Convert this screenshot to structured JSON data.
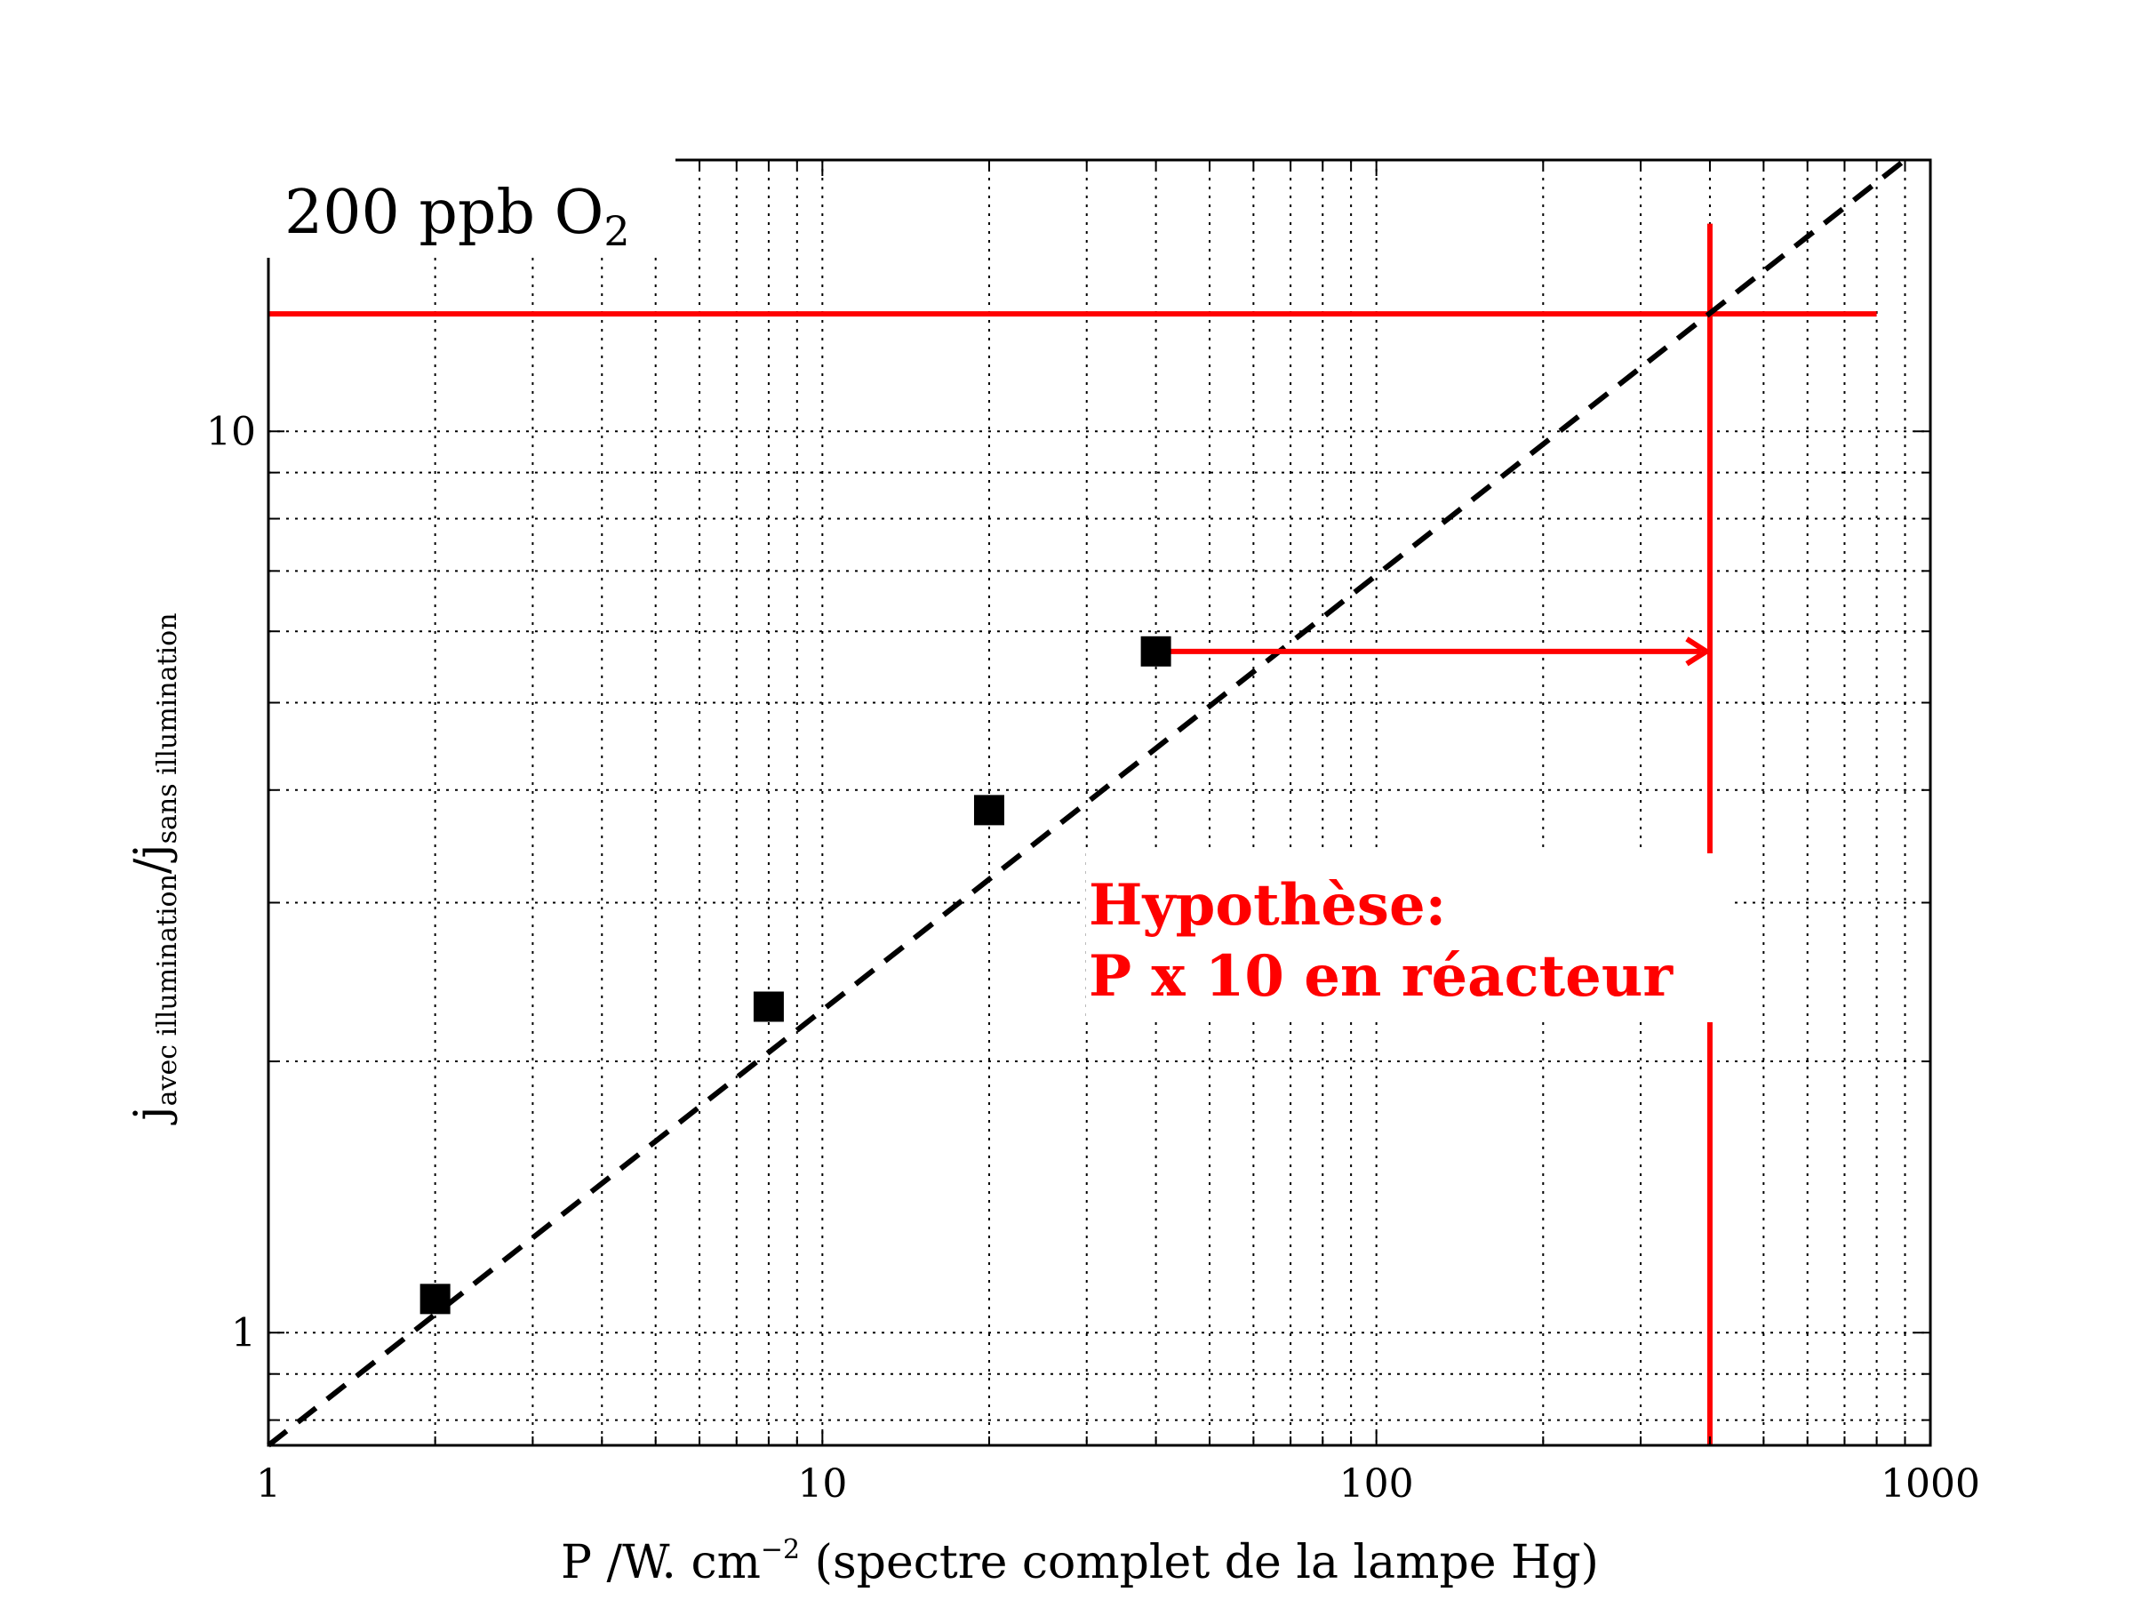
{
  "chart_data": {
    "type": "scatter",
    "x_scale": "log",
    "y_scale": "log",
    "xlim": [
      1,
      1000
    ],
    "ylim": [
      0.75,
      20
    ],
    "grid": true,
    "x_ticks": [
      1,
      10,
      100,
      1000
    ],
    "x_tick_labels": [
      "1",
      "10",
      "100",
      "1000"
    ],
    "y_ticks": [
      1,
      10
    ],
    "y_tick_labels": [
      "1",
      "10"
    ],
    "xlabel": "P /W. cm",
    "xlabel_exponent": "−2",
    "xlabel_suffix": " (spectre complet de la lampe Hg)",
    "ylabel_main": "j",
    "ylabel_sub1": "avec illumination",
    "ylabel_slash": "/j",
    "ylabel_sub2": "sans illumination",
    "corner_label": "200 ppb O",
    "corner_label_sub": "2",
    "points": [
      {
        "x": 2,
        "y": 1.09
      },
      {
        "x": 8,
        "y": 2.3
      },
      {
        "x": 20,
        "y": 3.8
      },
      {
        "x": 40,
        "y": 5.7
      }
    ],
    "fit_line": {
      "style": "dashed",
      "color": "#000000",
      "x": [
        1,
        900
      ],
      "y": [
        0.75,
        20
      ]
    },
    "annotation": {
      "lines": [
        "Hypothèse:",
        "P x 10 en réacteur"
      ],
      "color": "#ff0000",
      "arrow": {
        "from": [
          40,
          5.7
        ],
        "to": [
          400,
          5.7
        ]
      },
      "vertical_line_x": 400,
      "horizontal_line_y": 13.5
    }
  }
}
